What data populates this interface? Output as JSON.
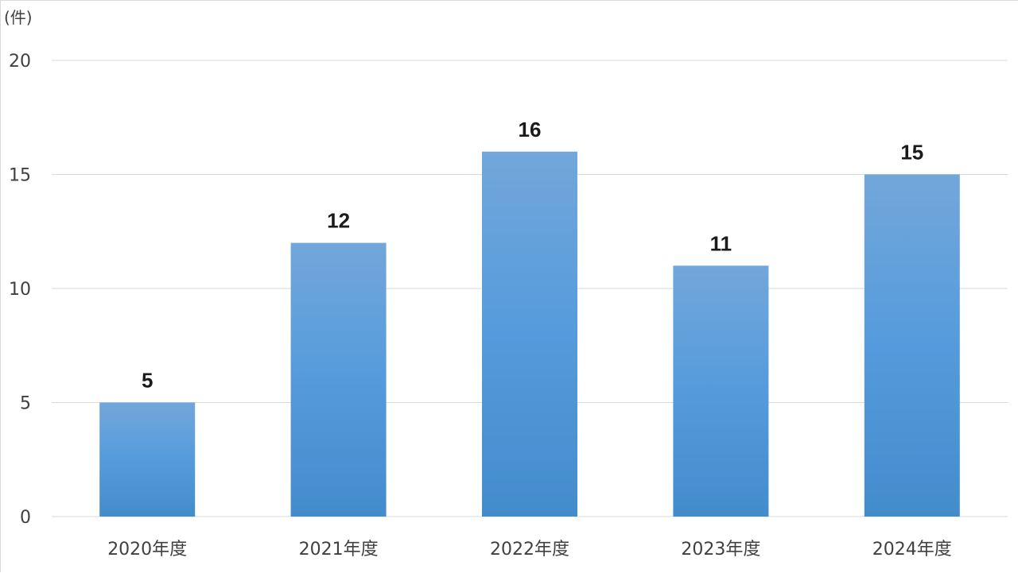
{
  "chart_data": {
    "type": "bar",
    "unit_label": "(件)",
    "categories": [
      "2020年度",
      "2021年度",
      "2022年度",
      "2023年度",
      "2024年度"
    ],
    "values": [
      5,
      12,
      16,
      11,
      15
    ],
    "data_labels": [
      "5",
      "12",
      "16",
      "11",
      "15"
    ],
    "ylim": [
      0,
      20
    ],
    "yticks": [
      0,
      5,
      10,
      15,
      20
    ],
    "ytick_labels": [
      "0",
      "5",
      "10",
      "15",
      "20"
    ],
    "grid": true,
    "legend": "none",
    "colors": {
      "bar_top": "#72a7da",
      "bar_mid": "#559bdc",
      "bar_bottom": "#438ccc",
      "grid": "#d9d9d9",
      "text": "#404040"
    }
  }
}
